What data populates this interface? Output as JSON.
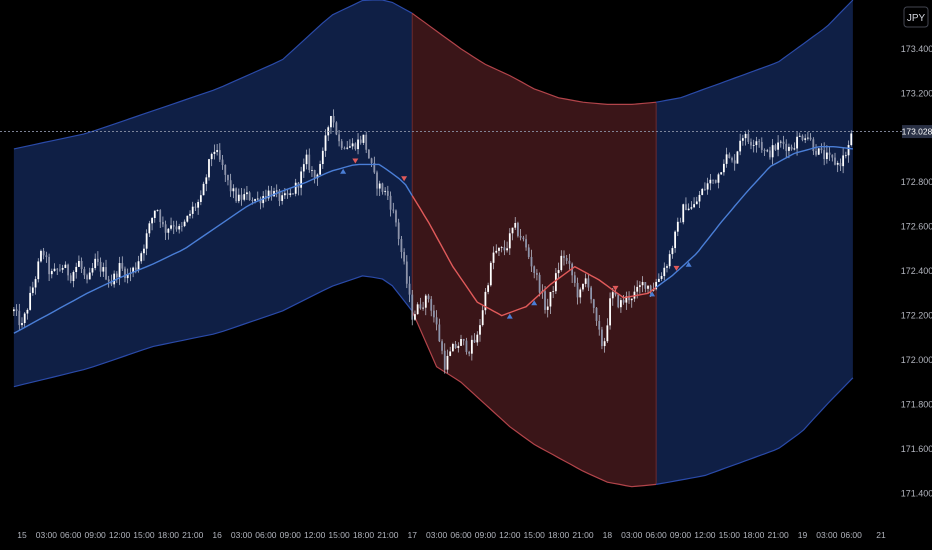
{
  "chart_data": {
    "type": "candlestick",
    "currency": "JPY",
    "current_price": 173.028,
    "current_price_label": "173.028",
    "ylim": [
      171.28,
      173.62
    ],
    "y_ticks": [
      173.4,
      173.2,
      172.8,
      172.6,
      172.4,
      172.2,
      172.0,
      171.8,
      171.6,
      171.4
    ],
    "y_tick_labels": [
      "173.400",
      "173.200",
      "172.800",
      "172.600",
      "172.400",
      "172.200",
      "172.000",
      "171.800",
      "171.600",
      "171.400"
    ],
    "x_ticks": [
      {
        "t": 0,
        "label": "15"
      },
      {
        "t": 3,
        "label": "03:00"
      },
      {
        "t": 6,
        "label": "06:00"
      },
      {
        "t": 9,
        "label": "09:00"
      },
      {
        "t": 12,
        "label": "12:00"
      },
      {
        "t": 15,
        "label": "15:00"
      },
      {
        "t": 18,
        "label": "18:00"
      },
      {
        "t": 21,
        "label": "21:00"
      },
      {
        "t": 24,
        "label": "16"
      },
      {
        "t": 27,
        "label": "03:00"
      },
      {
        "t": 30,
        "label": "06:00"
      },
      {
        "t": 33,
        "label": "09:00"
      },
      {
        "t": 36,
        "label": "12:00"
      },
      {
        "t": 39,
        "label": "15:00"
      },
      {
        "t": 42,
        "label": "18:00"
      },
      {
        "t": 45,
        "label": "21:00"
      },
      {
        "t": 48,
        "label": "17"
      },
      {
        "t": 51,
        "label": "03:00"
      },
      {
        "t": 54,
        "label": "06:00"
      },
      {
        "t": 57,
        "label": "09:00"
      },
      {
        "t": 60,
        "label": "12:00"
      },
      {
        "t": 63,
        "label": "15:00"
      },
      {
        "t": 66,
        "label": "18:00"
      },
      {
        "t": 69,
        "label": "21:00"
      },
      {
        "t": 72,
        "label": "18"
      },
      {
        "t": 75,
        "label": "03:00"
      },
      {
        "t": 78,
        "label": "06:00"
      },
      {
        "t": 81,
        "label": "09:00"
      },
      {
        "t": 84,
        "label": "12:00"
      },
      {
        "t": 87,
        "label": "15:00"
      },
      {
        "t": 90,
        "label": "18:00"
      },
      {
        "t": 93,
        "label": "21:00"
      },
      {
        "t": 96,
        "label": "19"
      },
      {
        "t": 99,
        "label": "03:00"
      },
      {
        "t": 102,
        "label": "06:00"
      }
    ],
    "x_end_label": "21",
    "price_path": [
      [
        -1,
        172.22
      ],
      [
        0,
        172.15
      ],
      [
        1.5,
        172.35
      ],
      [
        2.5,
        172.5
      ],
      [
        3.5,
        172.38
      ],
      [
        5,
        172.42
      ],
      [
        6,
        172.38
      ],
      [
        7,
        172.44
      ],
      [
        8,
        172.34
      ],
      [
        9,
        172.44
      ],
      [
        10,
        172.4
      ],
      [
        11,
        172.35
      ],
      [
        12,
        172.42
      ],
      [
        13,
        172.38
      ],
      [
        14,
        172.42
      ],
      [
        15,
        172.52
      ],
      [
        16.5,
        172.7
      ],
      [
        17.5,
        172.58
      ],
      [
        18.5,
        172.62
      ],
      [
        19.5,
        172.58
      ],
      [
        21,
        172.68
      ],
      [
        22,
        172.72
      ],
      [
        23.5,
        172.96
      ],
      [
        24.5,
        172.88
      ],
      [
        25.5,
        172.78
      ],
      [
        26.5,
        172.72
      ],
      [
        27.5,
        172.74
      ],
      [
        29,
        172.72
      ],
      [
        30.5,
        172.76
      ],
      [
        32,
        172.72
      ],
      [
        33,
        172.74
      ],
      [
        34,
        172.8
      ],
      [
        35,
        172.9
      ],
      [
        36,
        172.82
      ],
      [
        37,
        172.92
      ],
      [
        38,
        173.12
      ],
      [
        39,
        172.98
      ],
      [
        40.5,
        172.96
      ],
      [
        42,
        173.0
      ],
      [
        43.5,
        172.8
      ],
      [
        45,
        172.74
      ],
      [
        46,
        172.62
      ],
      [
        47,
        172.42
      ],
      [
        48,
        172.2
      ],
      [
        49,
        172.25
      ],
      [
        50,
        172.28
      ],
      [
        51,
        172.15
      ],
      [
        52,
        171.98
      ],
      [
        53,
        172.05
      ],
      [
        54,
        172.08
      ],
      [
        55,
        172.05
      ],
      [
        56,
        172.1
      ],
      [
        57,
        172.3
      ],
      [
        58,
        172.48
      ],
      [
        59.5,
        172.5
      ],
      [
        60.5,
        172.6
      ],
      [
        61.5,
        172.55
      ],
      [
        62.5,
        172.45
      ],
      [
        63.5,
        172.35
      ],
      [
        64.5,
        172.22
      ],
      [
        65.5,
        172.35
      ],
      [
        66.5,
        172.48
      ],
      [
        67.5,
        172.4
      ],
      [
        68.5,
        172.28
      ],
      [
        69.5,
        172.38
      ],
      [
        70.5,
        172.18
      ],
      [
        71.5,
        172.05
      ],
      [
        72.5,
        172.3
      ],
      [
        73.5,
        172.25
      ],
      [
        74.5,
        172.28
      ],
      [
        75.5,
        172.3
      ],
      [
        76.5,
        172.35
      ],
      [
        77.5,
        172.32
      ],
      [
        78.5,
        172.38
      ],
      [
        79.5,
        172.45
      ],
      [
        80.5,
        172.58
      ],
      [
        81.5,
        172.7
      ],
      [
        82.5,
        172.68
      ],
      [
        83.5,
        172.75
      ],
      [
        84.5,
        172.8
      ],
      [
        85.5,
        172.82
      ],
      [
        86.5,
        172.92
      ],
      [
        87.5,
        172.88
      ],
      [
        88.5,
        173.02
      ],
      [
        89.5,
        172.98
      ],
      [
        90.5,
        173.0
      ],
      [
        91.5,
        172.92
      ],
      [
        92.5,
        172.95
      ],
      [
        93.5,
        172.98
      ],
      [
        94.5,
        172.95
      ],
      [
        95.5,
        173.0
      ],
      [
        96.5,
        173.02
      ],
      [
        97.5,
        172.95
      ],
      [
        98.5,
        172.92
      ],
      [
        99.5,
        172.9
      ],
      [
        100.5,
        172.88
      ],
      [
        101.5,
        172.94
      ],
      [
        102.2,
        173.03
      ]
    ],
    "bands": {
      "x": [
        -1,
        8,
        16,
        24,
        32,
        38,
        42,
        45,
        48,
        51,
        54,
        57,
        60,
        63,
        66,
        69,
        72,
        75,
        78,
        81,
        84,
        87,
        90,
        93,
        96,
        99,
        102.2
      ],
      "upper": [
        172.95,
        173.02,
        173.12,
        173.22,
        173.35,
        173.55,
        173.62,
        173.62,
        173.56,
        173.48,
        173.4,
        173.33,
        173.28,
        173.22,
        173.18,
        173.16,
        173.15,
        173.15,
        173.16,
        173.18,
        173.22,
        173.26,
        173.3,
        173.34,
        173.42,
        173.5,
        173.62
      ],
      "lower": [
        171.88,
        171.96,
        172.06,
        172.12,
        172.22,
        172.33,
        172.38,
        172.36,
        172.22,
        171.97,
        171.9,
        171.8,
        171.7,
        171.62,
        171.56,
        171.5,
        171.45,
        171.43,
        171.44,
        171.46,
        171.48,
        171.52,
        171.56,
        171.6,
        171.68,
        171.8,
        171.92
      ]
    },
    "ma": {
      "x": [
        -1,
        4,
        8,
        12,
        16,
        20,
        24,
        28,
        32,
        35,
        38,
        41,
        44,
        47,
        50,
        53,
        56,
        59,
        62,
        65,
        68,
        71,
        74,
        77,
        80,
        83,
        86,
        89,
        92,
        95,
        98,
        100,
        102.2
      ],
      "y": [
        172.12,
        172.22,
        172.3,
        172.37,
        172.43,
        172.5,
        172.6,
        172.7,
        172.76,
        172.8,
        172.85,
        172.88,
        172.88,
        172.8,
        172.62,
        172.42,
        172.26,
        172.2,
        172.24,
        172.34,
        172.42,
        172.36,
        172.28,
        172.3,
        172.38,
        172.48,
        172.62,
        172.75,
        172.87,
        172.93,
        172.96,
        172.96,
        172.95
      ]
    },
    "regimes": [
      {
        "start": -1,
        "end": 48,
        "state": "bullish",
        "color": "#0f1f45"
      },
      {
        "start": 48,
        "end": 78,
        "state": "bearish",
        "color": "#3a1518"
      },
      {
        "start": 78,
        "end": 102.2,
        "state": "bullish",
        "color": "#0f1f45"
      }
    ],
    "signals": [
      {
        "t": 39.5,
        "type": "buy"
      },
      {
        "t": 41,
        "type": "sell"
      },
      {
        "t": 47,
        "type": "sell"
      },
      {
        "t": 60,
        "type": "buy"
      },
      {
        "t": 63,
        "type": "buy"
      },
      {
        "t": 73,
        "type": "sell"
      },
      {
        "t": 77.5,
        "type": "buy"
      },
      {
        "t": 80.5,
        "type": "sell"
      },
      {
        "t": 82,
        "type": "buy"
      }
    ],
    "colors": {
      "background": "#000000",
      "band_line": "#2a4aa8",
      "ma_bull": "#4a7ed6",
      "ma_bear": "#e05a5a",
      "candle": "#c9cedc",
      "candle_up": "#ffffff",
      "candle_down": "#8e94aa",
      "sell_marker": "#e05a5a",
      "buy_marker": "#4a7ed6",
      "regime_edge": "#6b2a2e",
      "price_label_bg": "#2a3145",
      "axis_text": "#b2b5be",
      "dotted_line": "#8c93a6"
    }
  }
}
